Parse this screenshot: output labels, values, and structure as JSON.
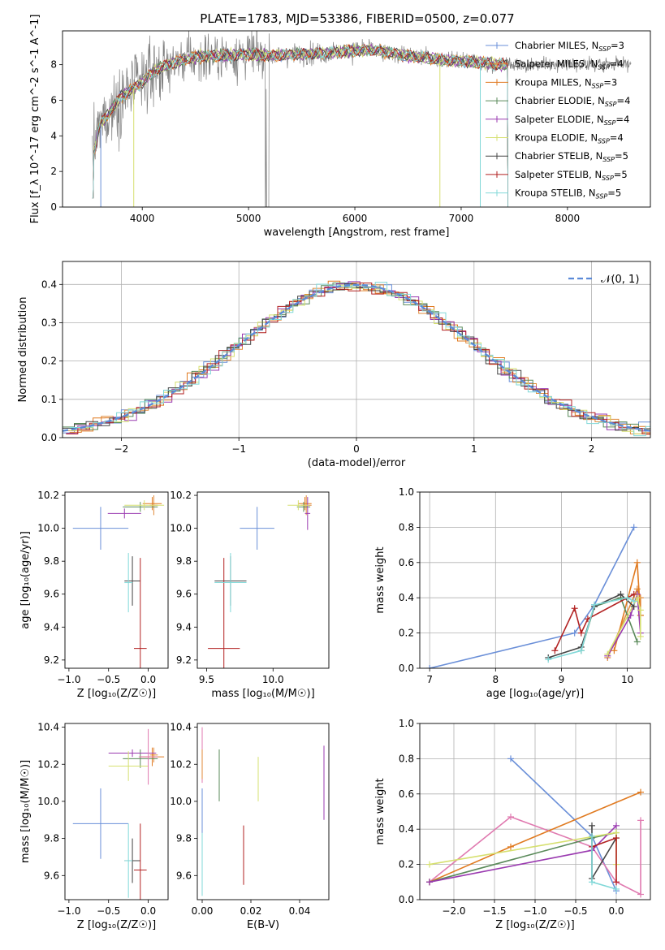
{
  "figure": {
    "title": "PLATE=1783, MJD=53386, FIBERID=0500, z=0.077"
  },
  "legend_labels": [
    {
      "text": "Chabrier MILES, N",
      "sub": "SSP",
      "suffix": "=3",
      "color": "#6a8fd8"
    },
    {
      "text": "Salpeter MILES, N",
      "sub": "SSP",
      "suffix": "=4",
      "color": "#e08a3a"
    },
    {
      "text": "Kroupa MILES, N",
      "sub": "SSP",
      "suffix": "=3",
      "color": "#e07a20"
    },
    {
      "text": "Chabrier ELODIE, N",
      "sub": "SSP",
      "suffix": "=4",
      "color": "#5a8a5a"
    },
    {
      "text": "Salpeter ELODIE, N",
      "sub": "SSP",
      "suffix": "=4",
      "color": "#9a3ab0"
    },
    {
      "text": "Kroupa ELODIE, N",
      "sub": "SSP",
      "suffix": "=4",
      "color": "#d6e070"
    },
    {
      "text": "Chabrier STELIB, N",
      "sub": "SSP",
      "suffix": "=5",
      "color": "#444444"
    },
    {
      "text": "Salpeter STELIB, N",
      "sub": "SSP",
      "suffix": "=5",
      "color": "#b22222"
    },
    {
      "text": "Kroupa STELIB, N",
      "sub": "SSP",
      "suffix": "=5",
      "color": "#80d8d8"
    }
  ],
  "chart_data": [
    {
      "id": "spectrum",
      "type": "line",
      "xlabel": "wavelength [Angstrom, rest frame]",
      "ylabel": "Flux [f_λ 10^-17 erg cm^-2 s^-1 A^-1]",
      "xlim": [
        3250,
        8780
      ],
      "ylim": [
        0,
        9.9
      ],
      "xticks": [
        4000,
        5000,
        6000,
        7000,
        8000
      ],
      "yticks": [
        0,
        2,
        4,
        6,
        8
      ],
      "grid": false,
      "legend": "right",
      "data_envelope": {
        "x": [
          3550,
          3600,
          3700,
          3800,
          3900,
          4000,
          4100,
          4200,
          4400,
          4600,
          4800,
          5000,
          5200,
          5500,
          5800,
          6000,
          6200,
          6500,
          6800,
          7000,
          7200,
          7400
        ],
        "y": [
          3.2,
          4.6,
          5.4,
          6.2,
          6.6,
          7.0,
          7.6,
          7.9,
          8.3,
          8.5,
          8.5,
          8.6,
          8.5,
          8.6,
          8.7,
          8.8,
          8.8,
          8.5,
          8.3,
          8.2,
          8.1,
          8.0
        ]
      }
    },
    {
      "id": "residual-histogram",
      "type": "line",
      "xlabel": "(data-model)/error",
      "ylabel": "Normed distribution",
      "xlim": [
        -2.5,
        2.5
      ],
      "ylim": [
        0,
        0.46
      ],
      "xticks": [
        -2,
        -1,
        0,
        1,
        2
      ],
      "yticks": [
        0.0,
        0.1,
        0.2,
        0.3,
        0.4
      ],
      "grid": true,
      "legend": "top-right",
      "reference": {
        "label": "𝒩(0, 1)",
        "mean": 0,
        "sigma": 1,
        "color": "#5b8ad8"
      },
      "bin_width": 0.1
    },
    {
      "id": "age-vs-Z",
      "type": "scatter",
      "xlabel": "Z [log₁₀(Z/Z☉)]",
      "ylabel": "age  [log₁₀(age/yr)]",
      "xlim": [
        -1.05,
        0.25
      ],
      "ylim": [
        9.15,
        10.22
      ],
      "xticks": [
        -1.0,
        -0.5,
        0.0
      ],
      "yticks": [
        9.2,
        9.4,
        9.6,
        9.8,
        10.0,
        10.2
      ],
      "points": [
        {
          "model": "Chabrier MILES",
          "x": -0.6,
          "y": 10.0,
          "xerr": 0.35,
          "yerr": 0.13,
          "color": "#6a8fd8"
        },
        {
          "model": "Salpeter MILES",
          "x": 0.07,
          "y": 10.14,
          "xerr": 0.05,
          "yerr": 0.06,
          "color": "#e08a3a"
        },
        {
          "model": "Kroupa MILES",
          "x": 0.05,
          "y": 10.15,
          "xerr": 0.12,
          "yerr": 0.04,
          "color": "#e07a20"
        },
        {
          "model": "Chabrier ELODIE",
          "x": -0.1,
          "y": 10.13,
          "xerr": 0.22,
          "yerr": 0.03,
          "color": "#5a8a5a"
        },
        {
          "model": "Salpeter ELODIE",
          "x": -0.3,
          "y": 10.09,
          "xerr": 0.21,
          "yerr": 0.03,
          "color": "#9a3ab0"
        },
        {
          "model": "Kroupa ELODIE",
          "x": -0.05,
          "y": 10.14,
          "xerr": 0.25,
          "yerr": 0.03,
          "color": "#d6e070"
        },
        {
          "model": "Chabrier STELIB",
          "x": -0.2,
          "y": 9.68,
          "xerr": 0.1,
          "yerr": 0.15,
          "color": "#444444"
        },
        {
          "model": "Salpeter STELIB",
          "x": -0.1,
          "y": 9.27,
          "xerr": 0.08,
          "yerr": 0.55,
          "color": "#b22222"
        },
        {
          "model": "Kroupa STELIB",
          "x": -0.25,
          "y": 9.67,
          "xerr": 0.05,
          "yerr": 0.18,
          "color": "#80d8d8"
        }
      ]
    },
    {
      "id": "age-vs-mass",
      "type": "scatter",
      "xlabel": "mass [log₁₀(M/M☉)]",
      "ylabel": "",
      "xlim": [
        9.43,
        10.42
      ],
      "ylim": [
        9.15,
        10.22
      ],
      "xticks": [
        9.5,
        10.0
      ],
      "yticks": [
        9.2,
        9.4,
        9.6,
        9.8,
        10.0,
        10.2
      ],
      "points": [
        {
          "model": "Chabrier MILES",
          "x": 9.88,
          "y": 10.0,
          "xerr": 0.13,
          "yerr": 0.13,
          "color": "#6a8fd8"
        },
        {
          "model": "Salpeter MILES",
          "x": 10.25,
          "y": 10.14,
          "xerr": 0.04,
          "yerr": 0.06,
          "color": "#e08a3a"
        },
        {
          "model": "Kroupa MILES",
          "x": 10.24,
          "y": 10.15,
          "xerr": 0.05,
          "yerr": 0.04,
          "color": "#e07a20"
        },
        {
          "model": "Chabrier ELODIE",
          "x": 10.23,
          "y": 10.13,
          "xerr": 0.05,
          "yerr": 0.03,
          "color": "#5a8a5a"
        },
        {
          "model": "Salpeter ELODIE",
          "x": 10.26,
          "y": 10.09,
          "xerr": 0.02,
          "yerr": 0.1,
          "color": "#9a3ab0"
        },
        {
          "model": "Kroupa ELODIE",
          "x": 10.19,
          "y": 10.14,
          "xerr": 0.08,
          "yerr": 0.03,
          "color": "#d6e070"
        },
        {
          "model": "Chabrier STELIB",
          "x": 9.68,
          "y": 9.68,
          "xerr": 0.12,
          "yerr": 0.15,
          "color": "#444444"
        },
        {
          "model": "Salpeter STELIB",
          "x": 9.63,
          "y": 9.27,
          "xerr": 0.12,
          "yerr": 0.55,
          "color": "#b22222"
        },
        {
          "model": "Kroupa STELIB",
          "x": 9.68,
          "y": 9.67,
          "xerr": 0.12,
          "yerr": 0.18,
          "color": "#80d8d8"
        }
      ]
    },
    {
      "id": "mass-weight-vs-age",
      "type": "line",
      "xlabel": "age  [log₁₀(age/yr)]",
      "ylabel": "mass weight",
      "xlim": [
        6.85,
        10.35
      ],
      "ylim": [
        0,
        1.0
      ],
      "xticks": [
        7,
        8,
        9,
        10
      ],
      "yticks": [
        0.0,
        0.2,
        0.4,
        0.6,
        0.8,
        1.0
      ],
      "grid": true,
      "series": [
        {
          "model": "Chabrier MILES",
          "color": "#6a8fd8",
          "x": [
            7.0,
            9.2,
            9.5,
            10.1
          ],
          "y": [
            0.0,
            0.2,
            0.36,
            0.8
          ]
        },
        {
          "model": "Salpeter MILES",
          "color": "#e08a3a",
          "x": [
            9.7,
            10.15,
            10.2,
            10.2
          ],
          "y": [
            0.06,
            0.45,
            0.4,
            0.3
          ]
        },
        {
          "model": "Kroupa MILES",
          "color": "#e07a20",
          "x": [
            9.8,
            10.15,
            10.2
          ],
          "y": [
            0.1,
            0.6,
            0.3
          ]
        },
        {
          "model": "Chabrier ELODIE",
          "color": "#5a8a5a",
          "x": [
            9.3,
            9.5,
            9.9,
            10.15
          ],
          "y": [
            0.1,
            0.35,
            0.4,
            0.15
          ]
        },
        {
          "model": "Salpeter ELODIE",
          "color": "#9a3ab0",
          "x": [
            9.7,
            10.05,
            10.15,
            10.2
          ],
          "y": [
            0.07,
            0.3,
            0.42,
            0.2
          ]
        },
        {
          "model": "Kroupa ELODIE",
          "color": "#d6e070",
          "x": [
            9.7,
            10.15,
            10.2,
            10.2
          ],
          "y": [
            0.08,
            0.4,
            0.33,
            0.18
          ]
        },
        {
          "model": "Chabrier STELIB",
          "color": "#444444",
          "x": [
            8.8,
            9.3,
            9.5,
            9.9,
            10.1
          ],
          "y": [
            0.06,
            0.12,
            0.35,
            0.42,
            0.35
          ]
        },
        {
          "model": "Salpeter STELIB",
          "color": "#b22222",
          "x": [
            8.9,
            9.2,
            9.3,
            9.4,
            10.1
          ],
          "y": [
            0.1,
            0.34,
            0.2,
            0.28,
            0.42
          ]
        },
        {
          "model": "Kroupa STELIB",
          "color": "#80d8d8",
          "x": [
            8.8,
            9.3,
            9.5,
            10.0,
            10.1
          ],
          "y": [
            0.05,
            0.1,
            0.36,
            0.4,
            0.38
          ]
        }
      ]
    },
    {
      "id": "mass-vs-Z",
      "type": "scatter",
      "xlabel": "Z [log₁₀(Z/Z☉)]",
      "ylabel": "mass [log₁₀(M/M☉)]",
      "xlim": [
        -1.05,
        0.25
      ],
      "ylim": [
        9.47,
        10.42
      ],
      "xticks": [
        -1.0,
        -0.5,
        0.0
      ],
      "yticks": [
        9.6,
        9.8,
        10.0,
        10.2,
        10.4
      ],
      "points": [
        {
          "model": "Chabrier MILES",
          "x": -0.6,
          "y": 9.88,
          "xerr": 0.35,
          "yerr": 0.19,
          "color": "#6a8fd8"
        },
        {
          "model": "Salpeter MILES",
          "x": 0.07,
          "y": 10.25,
          "xerr": 0.05,
          "yerr": 0.04,
          "color": "#e08a3a"
        },
        {
          "model": "Kroupa MILES",
          "x": 0.05,
          "y": 10.24,
          "xerr": 0.15,
          "yerr": 0.05,
          "color": "#e07a20"
        },
        {
          "model": "Chabrier ELODIE",
          "x": -0.1,
          "y": 10.23,
          "xerr": 0.22,
          "yerr": 0.05,
          "color": "#5a8a5a"
        },
        {
          "model": "Salpeter ELODIE",
          "x": -0.2,
          "y": 10.26,
          "xerr": 0.3,
          "yerr": 0.02,
          "color": "#9a3ab0"
        },
        {
          "model": "Kroupa ELODIE",
          "x": -0.25,
          "y": 10.19,
          "xerr": 0.25,
          "yerr": 0.08,
          "color": "#d6e070"
        },
        {
          "model": "Chabrier STELIB",
          "x": -0.2,
          "y": 9.68,
          "xerr": 0.1,
          "yerr": 0.12,
          "color": "#444444"
        },
        {
          "model": "Salpeter STELIB",
          "x": -0.1,
          "y": 9.63,
          "xerr": 0.08,
          "yerr": 0.25,
          "color": "#b22222"
        },
        {
          "model": "Kroupa STELIB",
          "x": -0.25,
          "y": 9.68,
          "xerr": 0.05,
          "yerr": 0.2,
          "color": "#80d8d8"
        },
        {
          "model": "Kroupa MILES (pink)",
          "x": 0.0,
          "y": 10.24,
          "xerr": 0.12,
          "yerr": 0.15,
          "color": "#e07ab0"
        }
      ]
    },
    {
      "id": "mass-vs-EBV",
      "type": "scatter",
      "xlabel": "E(B-V)",
      "ylabel": "",
      "xlim": [
        -0.002,
        0.052
      ],
      "ylim": [
        9.47,
        10.42
      ],
      "xticks": [
        0.0,
        0.02,
        0.04
      ],
      "yticks": [
        9.6,
        9.8,
        10.0,
        10.2,
        10.4
      ],
      "points": [
        {
          "model": "Chabrier MILES",
          "x": 0.0,
          "y": 9.88,
          "yerr": 0.19,
          "color": "#6a8fd8"
        },
        {
          "model": "Kroupa MILES",
          "x": 0.0,
          "y": 10.25,
          "yerr": 0.15,
          "color": "#e07ab0"
        },
        {
          "model": "Salpeter MILES",
          "x": 0.0,
          "y": 10.2,
          "yerr": 0.08,
          "color": "#e08a3a"
        },
        {
          "model": "Chabrier ELODIE",
          "x": 0.007,
          "y": 10.14,
          "yerr": 0.14,
          "color": "#5a8a5a"
        },
        {
          "model": "Salpeter ELODIE",
          "x": 0.05,
          "y": 10.1,
          "yerr": 0.2,
          "color": "#9a3ab0"
        },
        {
          "model": "Kroupa ELODIE",
          "x": 0.023,
          "y": 10.12,
          "yerr": 0.12,
          "color": "#d6e070"
        },
        {
          "model": "Salpeter STELIB",
          "x": 0.017,
          "y": 9.71,
          "yerr": 0.16,
          "color": "#b22222"
        },
        {
          "model": "Kroupa STELIB",
          "x": 0.0,
          "y": 9.66,
          "yerr": 0.17,
          "color": "#80d8d8"
        }
      ]
    },
    {
      "id": "mass-weight-vs-Z",
      "type": "line",
      "xlabel": "Z [log₁₀(Z/Z☉)]",
      "ylabel": "mass weight",
      "xlim": [
        -2.42,
        0.42
      ],
      "ylim": [
        0,
        1.0
      ],
      "xticks": [
        -2.0,
        -1.5,
        -1.0,
        -0.5,
        0.0
      ],
      "yticks": [
        0.0,
        0.2,
        0.4,
        0.6,
        0.8,
        1.0
      ],
      "grid": true,
      "series": [
        {
          "model": "Chabrier MILES",
          "color": "#6a8fd8",
          "x": [
            -1.3,
            -0.3,
            0.0
          ],
          "y": [
            0.8,
            0.36,
            0.05
          ]
        },
        {
          "model": "Salpeter MILES",
          "color": "#e07ab0",
          "x": [
            -2.3,
            -1.3,
            -0.3,
            0.0,
            0.3,
            0.3
          ],
          "y": [
            0.1,
            0.47,
            0.3,
            0.1,
            0.03,
            0.45
          ]
        },
        {
          "model": "Kroupa MILES",
          "color": "#e07a20",
          "x": [
            -2.3,
            -1.3,
            0.3
          ],
          "y": [
            0.1,
            0.3,
            0.61
          ]
        },
        {
          "model": "Chabrier ELODIE",
          "color": "#5a8a5a",
          "x": [
            -2.3,
            -0.3,
            0.0
          ],
          "y": [
            0.1,
            0.35,
            0.38
          ]
        },
        {
          "model": "Salpeter ELODIE",
          "color": "#9a3ab0",
          "x": [
            -2.3,
            -0.3,
            0.0
          ],
          "y": [
            0.1,
            0.28,
            0.42
          ]
        },
        {
          "model": "Kroupa ELODIE",
          "color": "#d6e070",
          "x": [
            -2.3,
            0.0,
            0.0
          ],
          "y": [
            0.2,
            0.38,
            0.2
          ]
        },
        {
          "model": "Chabrier STELIB",
          "color": "#444444",
          "x": [
            -0.3,
            -0.3,
            0.0
          ],
          "y": [
            0.42,
            0.12,
            0.35
          ]
        },
        {
          "model": "Salpeter STELIB",
          "color": "#b22222",
          "x": [
            -0.3,
            0.0,
            0.0
          ],
          "y": [
            0.3,
            0.35,
            0.1
          ]
        },
        {
          "model": "Kroupa STELIB",
          "color": "#80d8d8",
          "x": [
            -0.3,
            -0.3,
            0.0
          ],
          "y": [
            0.36,
            0.1,
            0.06
          ]
        }
      ]
    }
  ]
}
